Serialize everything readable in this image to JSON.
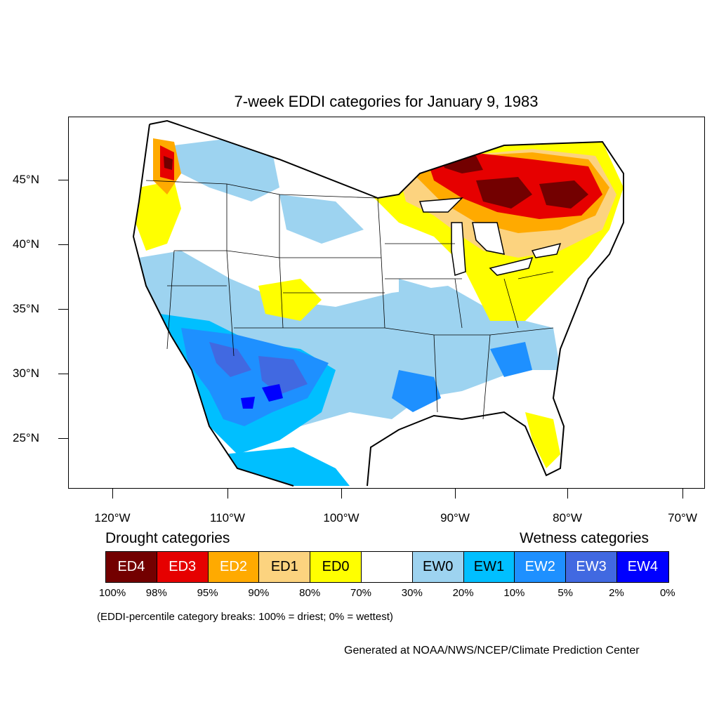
{
  "map": {
    "title": "7-week EDDI categories for January 9, 1983",
    "lat_labels": [
      "45°N",
      "40°N",
      "35°N",
      "30°N",
      "25°N"
    ],
    "lon_labels": [
      "120°W",
      "110°W",
      "100°W",
      "90°W",
      "80°W",
      "70°W"
    ]
  },
  "legend": {
    "drought_heading": "Drought categories",
    "wetness_heading": "Wetness categories",
    "categories": [
      {
        "label": "ED4",
        "color": "#730000",
        "text_color": "#ffffff"
      },
      {
        "label": "ED3",
        "color": "#e60000",
        "text_color": "#ffffff"
      },
      {
        "label": "ED2",
        "color": "#ffaa00",
        "text_color": "#ffffff"
      },
      {
        "label": "ED1",
        "color": "#fcd37f",
        "text_color": "#000000"
      },
      {
        "label": "ED0",
        "color": "#ffff00",
        "text_color": "#000000"
      },
      {
        "label": "",
        "color": "#ffffff",
        "text_color": "#000000"
      },
      {
        "label": "EW0",
        "color": "#9dd3f0",
        "text_color": "#000000"
      },
      {
        "label": "EW1",
        "color": "#00bfff",
        "text_color": "#000000"
      },
      {
        "label": "EW2",
        "color": "#1e90ff",
        "text_color": "#ffffff"
      },
      {
        "label": "EW3",
        "color": "#4169e1",
        "text_color": "#ffffff"
      },
      {
        "label": "EW4",
        "color": "#0000ff",
        "text_color": "#ffffff"
      }
    ],
    "breaks": [
      "100%",
      "98%",
      "95%",
      "90%",
      "80%",
      "70%",
      "30%",
      "20%",
      "10%",
      "5%",
      "2%",
      "0%"
    ]
  },
  "note": "(EDDI-percentile category breaks: 100% = driest; 0% = wettest)",
  "credit": "Generated at NOAA/NWS/NCEP/Climate Prediction Center"
}
